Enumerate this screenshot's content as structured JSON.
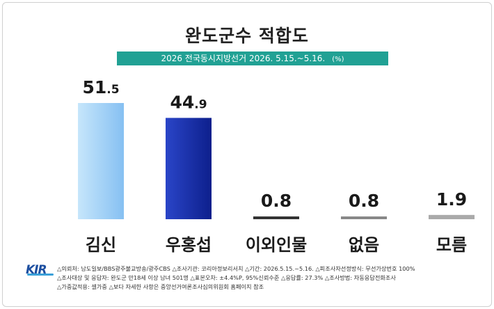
{
  "title": "완도군수 적합도",
  "subtitle": "2026 전국동시지방선거 2026. 5.15.~5.16.",
  "unit": "(%)",
  "chart_data": {
    "type": "bar",
    "title": "완도군수 적합도",
    "categories": [
      "김신",
      "우홍섭",
      "이외인물",
      "없음",
      "모름"
    ],
    "values": [
      51.5,
      44.9,
      0.8,
      0.8,
      1.9
    ],
    "value_labels": [
      {
        "int": "51",
        "dec": ".5"
      },
      {
        "int": "44",
        "dec": ".9"
      },
      {
        "int": "0.8",
        "dec": ""
      },
      {
        "int": "0.8",
        "dec": ""
      },
      {
        "int": "1.9",
        "dec": ""
      }
    ],
    "colors": [
      "#9ed0f7",
      "#1a33b0",
      "#333333",
      "#888888",
      "#aaaaaa"
    ],
    "ylim": [
      0,
      51.5
    ],
    "grid": false,
    "legend": "none"
  },
  "footer": {
    "logo_text": "KIR",
    "line1": "△의뢰처: 남도일보/BBS광주불교방송/광주CBS  △조사기관: 코리아정보리서치  △기간: 2026.5.15.~5.16.  △피조사자선정방식: 무선가상번호 100%",
    "line2": "△조사대상 및 응답자: 완도군 만18세 이상 남녀 501명  △표본오차: ±4.4%P, 95%신뢰수준  △응답률: 27.3%  △조사방법: 자동응답전화조사",
    "line3": "△가중값적용: 셀가중  △보다 자세한 사항은 중앙선거여론조사심의위원회 홈페이지 참조"
  }
}
